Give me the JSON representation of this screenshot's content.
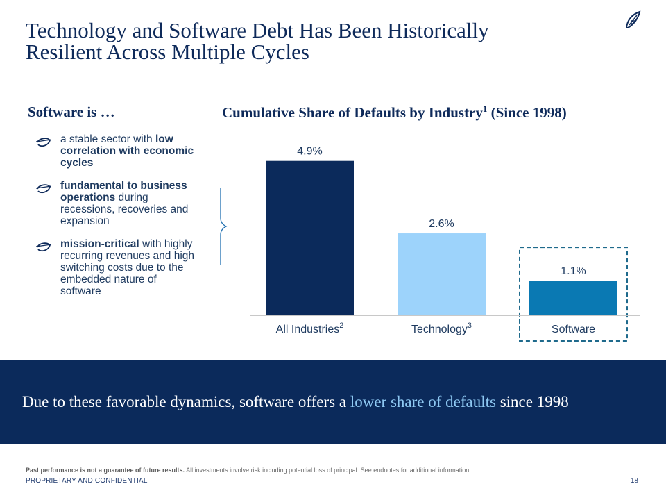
{
  "title": {
    "line1": "Technology and Software Debt Has Been Historically",
    "line2": "Resilient Across Multiple Cycles"
  },
  "logo_icon": "owl-feather-icon",
  "left_panel": {
    "heading": "Software is …",
    "bullet_icon": "swoosh-icon",
    "bullets": [
      {
        "pre": "a stable sector with ",
        "bold": "low correlation with economic cycles",
        "post": ""
      },
      {
        "pre": "",
        "bold": "fundamental to business operations",
        "post": " during recessions, recoveries and expansion"
      },
      {
        "pre": "",
        "bold": "mission-critical",
        "post": " with highly recurring revenues and high switching costs due to the embedded nature of software"
      }
    ]
  },
  "chart_data": {
    "type": "bar",
    "title": "Cumulative Share of Defaults by Industry",
    "title_sup": "1",
    "title_suffix": " (Since 1998)",
    "categories": [
      "All Industries",
      "Technology",
      "Software"
    ],
    "category_sups": [
      "2",
      "3",
      ""
    ],
    "values": [
      4.9,
      2.6,
      1.1
    ],
    "value_labels": [
      "4.9%",
      "2.6%",
      "1.1%"
    ],
    "colors": [
      "#0b2a5b",
      "#9dd3fb",
      "#0a79b3"
    ],
    "highlight_category": "Software",
    "ylim": [
      0,
      5.4
    ],
    "grid": false,
    "legend": "none",
    "xlabel": "",
    "ylabel": ""
  },
  "banner": {
    "pre": "Due to these favorable dynamics, software offers a ",
    "highlight": "lower share of defaults",
    "post": " since 1998"
  },
  "footer": {
    "disclaimer_bold": "Past performance is not a guarantee of future results.",
    "disclaimer_rest": " All investments involve risk including potential loss of principal. See endnotes for additional information.",
    "confidential": "PROPRIETARY AND CONFIDENTIAL",
    "page_number": "18"
  }
}
